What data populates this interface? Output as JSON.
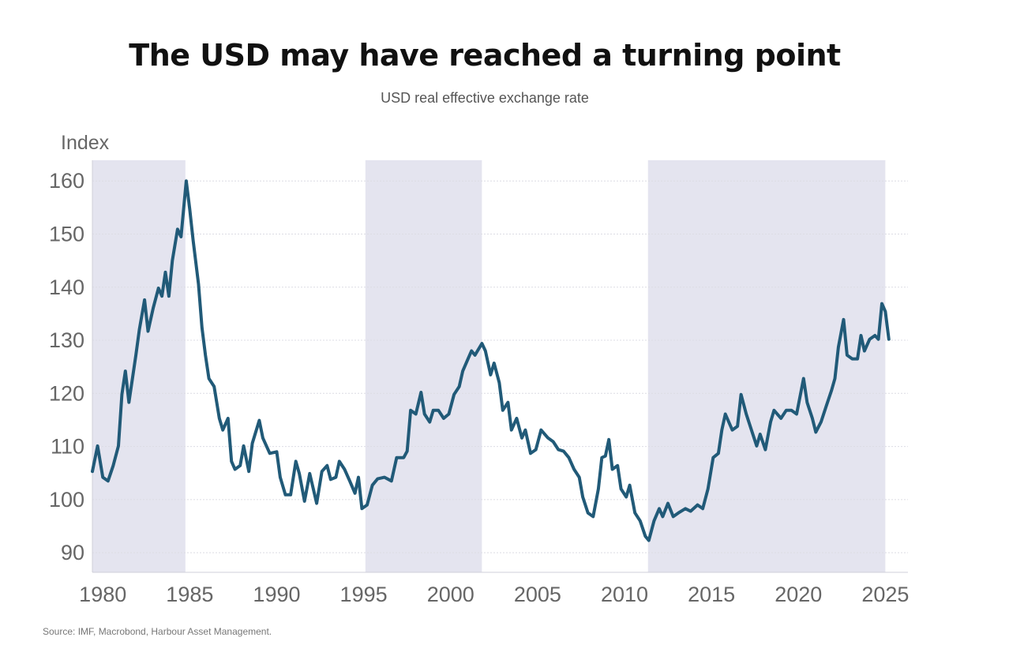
{
  "chart_data": {
    "type": "line",
    "title": "The USD may have reached a turning point",
    "subtitle": "USD real effective exchange rate",
    "ylabel": "Index",
    "xlabel": "",
    "source": "Source: IMF, Macrobond, Harbour Asset Management.",
    "xlim": [
      1979.4,
      2026.3
    ],
    "ylim": [
      86.3,
      163.9
    ],
    "x_ticks": [
      1980,
      1985,
      1990,
      1995,
      2000,
      2005,
      2010,
      2015,
      2020,
      2025
    ],
    "y_ticks": [
      90,
      100,
      110,
      120,
      130,
      140,
      150,
      160
    ],
    "grid": true,
    "line_color": "#215a78",
    "shade_color": "#e4e4ef",
    "shaded_periods": [
      [
        1979.4,
        1984.75
      ],
      [
        1995.1,
        2001.8
      ],
      [
        2011.35,
        2025.0
      ]
    ],
    "series": [
      {
        "name": "USD real effective exchange rate",
        "x": [
          1979.4,
          1979.7,
          1980.0,
          1980.3,
          1980.6,
          1980.9,
          1981.1,
          1981.3,
          1981.5,
          1981.9,
          1982.1,
          1982.4,
          1982.6,
          1982.9,
          1983.2,
          1983.4,
          1983.6,
          1983.8,
          1984.0,
          1984.3,
          1984.5,
          1984.8,
          1985.0,
          1985.2,
          1985.5,
          1985.7,
          1985.9,
          1986.1,
          1986.4,
          1986.7,
          1986.9,
          1987.2,
          1987.4,
          1987.6,
          1987.9,
          1988.1,
          1988.4,
          1988.6,
          1989.0,
          1989.2,
          1989.6,
          1990.0,
          1990.2,
          1990.5,
          1990.8,
          1991.1,
          1991.3,
          1991.6,
          1991.9,
          1992.3,
          1992.6,
          1992.9,
          1993.1,
          1993.4,
          1993.6,
          1993.9,
          1994.2,
          1994.5,
          1994.7,
          1994.9,
          1995.2,
          1995.5,
          1995.8,
          1996.2,
          1996.6,
          1996.9,
          1997.3,
          1997.5,
          1997.7,
          1998.0,
          1998.3,
          1998.5,
          1998.8,
          1999.0,
          1999.3,
          1999.6,
          1999.9,
          2000.2,
          2000.5,
          2000.7,
          2001.0,
          2001.2,
          2001.4,
          2001.8,
          2002.0,
          2002.3,
          2002.5,
          2002.8,
          2003.0,
          2003.3,
          2003.5,
          2003.8,
          2004.1,
          2004.3,
          2004.6,
          2004.9,
          2005.2,
          2005.6,
          2005.9,
          2006.2,
          2006.5,
          2006.8,
          2007.1,
          2007.4,
          2007.6,
          2007.9,
          2008.2,
          2008.5,
          2008.7,
          2008.9,
          2009.1,
          2009.3,
          2009.6,
          2009.8,
          2010.1,
          2010.3,
          2010.6,
          2010.9,
          2011.2,
          2011.4,
          2011.7,
          2012.0,
          2012.2,
          2012.5,
          2012.8,
          2013.1,
          2013.5,
          2013.8,
          2014.2,
          2014.5,
          2014.8,
          2015.1,
          2015.4,
          2015.6,
          2015.8,
          2016.2,
          2016.5,
          2016.7,
          2017.0,
          2017.3,
          2017.6,
          2017.8,
          2018.1,
          2018.4,
          2018.6,
          2019.0,
          2019.3,
          2019.6,
          2019.9,
          2020.3,
          2020.5,
          2020.8,
          2021.0,
          2021.3,
          2021.6,
          2021.9,
          2022.1,
          2022.3,
          2022.6,
          2022.8,
          2023.1,
          2023.4,
          2023.6,
          2023.8,
          2024.1,
          2024.4,
          2024.6,
          2024.8,
          2025.0,
          2025.2
        ],
        "y": [
          105.3,
          110.1,
          104.2,
          103.5,
          106.4,
          110.1,
          119.8,
          124.2,
          118.3,
          127.2,
          132,
          137.6,
          131.7,
          136.1,
          139.8,
          138.3,
          142.8,
          138.3,
          145,
          150.9,
          149.5,
          160,
          154.7,
          148.7,
          140.6,
          132.4,
          127.2,
          122.8,
          121.3,
          115.3,
          113.1,
          115.3,
          107.2,
          105.7,
          106.4,
          110.1,
          105.3,
          110.6,
          114.9,
          111.6,
          108.7,
          109,
          104.2,
          100.9,
          100.9,
          107.2,
          104.9,
          99.7,
          104.9,
          99.3,
          105.3,
          106.4,
          103.8,
          104.2,
          107.2,
          105.7,
          103.5,
          101.2,
          104.2,
          98.3,
          99,
          102.7,
          103.9,
          104.2,
          103.5,
          107.9,
          107.9,
          109.1,
          116.8,
          116.1,
          120.2,
          116.1,
          114.6,
          116.8,
          116.8,
          115.3,
          116.1,
          119.8,
          121.3,
          124.2,
          126.5,
          128,
          127.2,
          129.4,
          128,
          123.5,
          125.7,
          122,
          116.8,
          118.3,
          113.1,
          115.3,
          111.6,
          113.1,
          108.7,
          109.4,
          113.1,
          111.6,
          110.9,
          109.4,
          109.1,
          107.9,
          105.7,
          104.2,
          100.5,
          97.5,
          96.8,
          102,
          107.9,
          108.2,
          111.3,
          105.7,
          106.4,
          102,
          100.5,
          102.7,
          97.5,
          96,
          93.1,
          92.3,
          96,
          98.3,
          96.8,
          99.3,
          96.8,
          97.5,
          98.3,
          97.8,
          99,
          98.3,
          102,
          107.9,
          108.7,
          113.1,
          116.1,
          113.1,
          113.8,
          119.8,
          116.1,
          113.1,
          110.1,
          112.3,
          109.4,
          114.6,
          116.8,
          115.3,
          116.8,
          116.8,
          116.1,
          122.8,
          118.3,
          115.3,
          112.7,
          114.6,
          117.6,
          120.5,
          122.8,
          128.7,
          133.9,
          127.2,
          126.5,
          126.5,
          130.9,
          128,
          130.2,
          130.9,
          130.2,
          136.9,
          135.4,
          130.2
        ]
      }
    ]
  }
}
